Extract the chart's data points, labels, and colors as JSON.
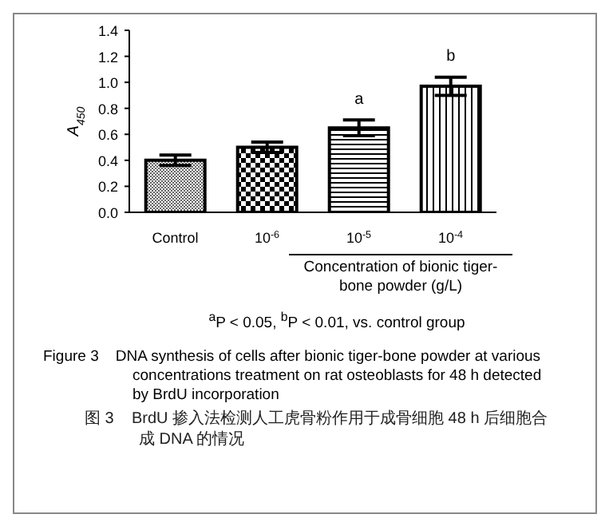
{
  "chart_data": {
    "type": "bar",
    "ylabel": "A$_{450}$",
    "xlabel": "Concentration of bionic tiger-bone powder (g/L)",
    "categories": [
      "Control",
      "10$^{-6}$",
      "10$^{-5}$",
      "10$^{-4}$"
    ],
    "series": [
      {
        "color": "#000000",
        "values": [
          0.4,
          0.5,
          0.65,
          0.97
        ],
        "errors": [
          0.04,
          0.04,
          0.06,
          0.07
        ],
        "value_labels": [
          null,
          null,
          "a",
          "b"
        ]
      }
    ],
    "ylim": [
      0,
      1.4
    ],
    "yticks": [
      {
        "value": 0,
        "label": "0.0"
      },
      0.2,
      0.4,
      0.6,
      0.8,
      {
        "value": 1,
        "label": "1.0"
      },
      1.2,
      1.4
    ],
    "grid": false,
    "legend": false,
    "annotations": [
      "$^{a}$P < 0.05, $^{b}$P < 0.01, vs. control group",
      "Figure 3    DNA synthesis of cells after bionic tiger-bone powder at various concentrations treatment on rat osteoblasts for 48 h detected by BrdU incorporation",
      "图 3    BrdU 掺入法检测人工虎骨粉作用于成骨细胞 48 h 后细胞合成 DNA 的情况"
    ]
  }
}
